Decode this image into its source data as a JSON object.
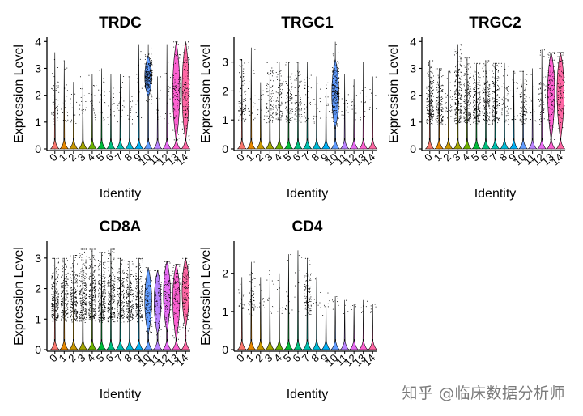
{
  "watermark": "知乎 @临床数据分析师",
  "chart_data": [
    {
      "type": "violin",
      "title": "TRDC",
      "xlabel": "Identity",
      "ylabel": "Expression Level",
      "categories": [
        "0",
        "1",
        "2",
        "3",
        "4",
        "5",
        "6",
        "7",
        "8",
        "9",
        "10",
        "11",
        "12",
        "13",
        "14"
      ],
      "yticks": [
        0,
        1,
        2,
        3,
        4
      ],
      "ylim": [
        0,
        4.1
      ],
      "cluster_max": [
        3.6,
        3.3,
        2.5,
        2.9,
        2.8,
        3.0,
        2.8,
        2.8,
        2.7,
        3.9,
        3.9,
        2.7,
        3.9,
        4.0,
        4.0
      ],
      "points_n": [
        45,
        25,
        14,
        18,
        20,
        24,
        20,
        20,
        18,
        16,
        230,
        14,
        18,
        120,
        140
      ],
      "body_center": [
        0,
        0,
        0,
        0,
        0,
        0,
        0,
        0,
        0,
        0,
        2.7,
        0,
        0,
        2.2,
        2.2
      ],
      "body_spread": [
        0,
        0,
        0,
        0,
        0,
        0,
        0,
        0,
        0,
        0,
        0.35,
        0,
        0,
        0.9,
        0.9
      ]
    },
    {
      "type": "violin",
      "title": "TRGC1",
      "xlabel": "Identity",
      "ylabel": "Expression Level",
      "categories": [
        "0",
        "1",
        "2",
        "3",
        "4",
        "5",
        "6",
        "7",
        "8",
        "9",
        "10",
        "11",
        "12",
        "13",
        "14"
      ],
      "yticks": [
        0,
        1,
        2,
        3
      ],
      "ylim": [
        0,
        3.8
      ],
      "cluster_max": [
        3.1,
        3.5,
        2.3,
        3.0,
        3.0,
        3.0,
        3.0,
        3.0,
        2.5,
        2.6,
        3.7,
        2.6,
        2.4,
        3.0,
        2.5
      ],
      "points_n": [
        110,
        20,
        12,
        95,
        90,
        95,
        80,
        30,
        18,
        14,
        230,
        14,
        12,
        14,
        10
      ],
      "body_center": [
        0,
        0,
        0,
        0,
        0,
        0,
        0,
        0,
        0,
        0,
        1.9,
        0,
        0,
        0,
        0
      ],
      "body_spread": [
        0,
        0,
        0,
        0,
        0,
        0,
        0,
        0,
        0,
        0,
        0.55,
        0,
        0,
        0,
        0
      ]
    },
    {
      "type": "violin",
      "title": "TRGC2",
      "xlabel": "Identity",
      "ylabel": "Expression Level",
      "categories": [
        "0",
        "1",
        "2",
        "3",
        "4",
        "5",
        "6",
        "7",
        "8",
        "9",
        "10",
        "11",
        "12",
        "13",
        "14"
      ],
      "yticks": [
        0,
        1,
        2,
        3,
        4
      ],
      "ylim": [
        0,
        4.1
      ],
      "cluster_max": [
        3.3,
        3.0,
        2.9,
        3.9,
        3.4,
        3.2,
        3.3,
        3.2,
        3.2,
        2.9,
        2.9,
        3.0,
        3.7,
        3.6,
        3.6
      ],
      "points_n": [
        200,
        160,
        30,
        230,
        200,
        190,
        180,
        170,
        60,
        25,
        110,
        14,
        60,
        130,
        130
      ],
      "body_center": [
        0,
        0,
        0,
        0,
        0,
        0,
        0,
        0,
        0,
        0,
        0,
        0,
        0,
        2.3,
        2.3
      ],
      "body_spread": [
        0,
        0,
        0,
        0,
        0,
        0,
        0,
        0,
        0,
        0,
        0,
        0,
        0,
        0.9,
        0.9
      ]
    },
    {
      "type": "violin",
      "title": "CD8A",
      "xlabel": "Identity",
      "ylabel": "Expression Level",
      "categories": [
        "0",
        "1",
        "2",
        "3",
        "4",
        "5",
        "6",
        "7",
        "8",
        "9",
        "10",
        "11",
        "12",
        "13",
        "14"
      ],
      "yticks": [
        0,
        1,
        2,
        3
      ],
      "ylim": [
        0,
        3.5
      ],
      "cluster_max": [
        3.0,
        3.0,
        3.1,
        3.3,
        3.3,
        3.2,
        3.3,
        3.0,
        2.9,
        3.0,
        2.7,
        2.6,
        2.9,
        2.8,
        3.0
      ],
      "points_n": [
        200,
        200,
        210,
        240,
        240,
        230,
        230,
        200,
        190,
        190,
        110,
        100,
        110,
        110,
        110
      ],
      "body_center": [
        0,
        0,
        0,
        0,
        0,
        0,
        0,
        0,
        0,
        0,
        1.6,
        1.6,
        1.9,
        1.8,
        2.0
      ],
      "body_spread": [
        0,
        0,
        0,
        0,
        0,
        0,
        0,
        0,
        0,
        0,
        0.5,
        0.5,
        0.6,
        0.7,
        0.6
      ]
    },
    {
      "type": "violin",
      "title": "CD4",
      "xlabel": "Identity",
      "ylabel": "Expression Level",
      "categories": [
        "0",
        "1",
        "2",
        "3",
        "4",
        "5",
        "6",
        "7",
        "8",
        "9",
        "10",
        "11",
        "12",
        "13",
        "14"
      ],
      "yticks": [
        0,
        1,
        2
      ],
      "ylim": [
        0,
        2.8
      ],
      "cluster_max": [
        1.9,
        2.3,
        1.9,
        2.2,
        2.0,
        2.5,
        2.6,
        2.4,
        1.9,
        1.5,
        1.4,
        1.3,
        1.2,
        1.3,
        1.2
      ],
      "points_n": [
        20,
        60,
        10,
        12,
        10,
        14,
        12,
        95,
        10,
        8,
        8,
        6,
        6,
        6,
        6
      ],
      "body_center": [
        0,
        0,
        0,
        0,
        0,
        0,
        0,
        0,
        0,
        0,
        0,
        0,
        0,
        0,
        0
      ],
      "body_spread": [
        0,
        0,
        0,
        0,
        0,
        0,
        0,
        0,
        0,
        0,
        0,
        0,
        0,
        0,
        0
      ]
    }
  ],
  "palette": [
    "#F8766D",
    "#E58700",
    "#C99800",
    "#A3A500",
    "#6BB100",
    "#00BA38",
    "#00BF7D",
    "#00C0AF",
    "#00BCD8",
    "#00B0F6",
    "#619CFF",
    "#B983FF",
    "#E76BF3",
    "#FD61D1",
    "#FF67A4"
  ]
}
